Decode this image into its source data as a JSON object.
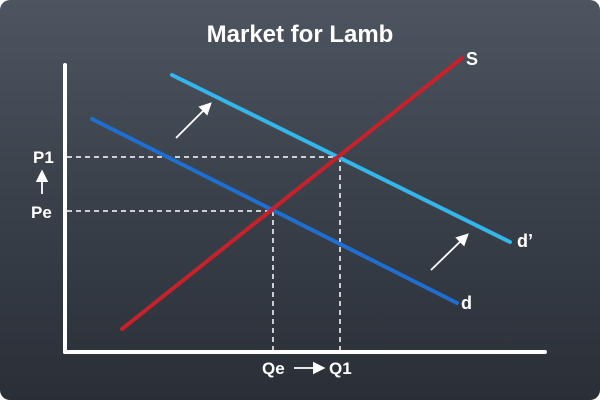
{
  "title": "Market for Lamb",
  "curves": {
    "supply": {
      "label": "S",
      "color": "#c8212b"
    },
    "demand": {
      "label": "d",
      "color": "#1f6fd0"
    },
    "demand_shifted": {
      "label": "d’",
      "color": "#34b6ea"
    }
  },
  "price_labels": {
    "p1": "P1",
    "pe": "Pe"
  },
  "quantity_labels": {
    "qe": "Qe",
    "q1": "Q1"
  },
  "shift_arrows": [
    "arrow-up-right-icon",
    "arrow-up-right-icon"
  ]
}
